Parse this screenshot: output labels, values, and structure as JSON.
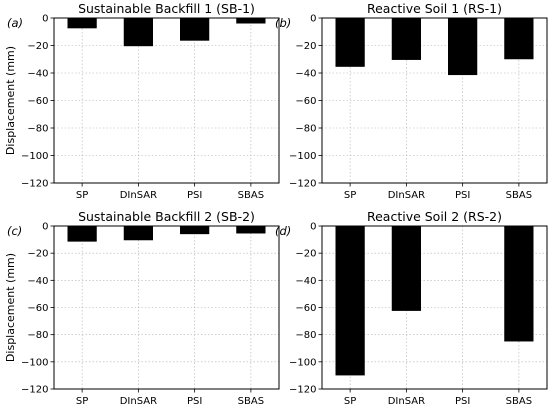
{
  "y_axis_label": "Displacement (mm)",
  "chart_data": [
    {
      "type": "bar",
      "panel_label": "(a)",
      "title": "Sustainable Backfill 1 (SB-1)",
      "categories": [
        "SP",
        "DInSAR",
        "PSI",
        "SBAS"
      ],
      "values": [
        -7.5,
        -20.5,
        -16.5,
        -4.0
      ],
      "ylim": [
        -120,
        0
      ],
      "yticks": [
        0,
        -20,
        -40,
        -60,
        -80,
        -100,
        -120
      ],
      "ylabel": "Displacement (mm)",
      "grid": true,
      "bar_color": "#000000"
    },
    {
      "type": "bar",
      "panel_label": "(b)",
      "title": "Reactive Soil 1 (RS-1)",
      "categories": [
        "SP",
        "DInSAR",
        "PSI",
        "SBAS"
      ],
      "values": [
        -35.5,
        -30.5,
        -41.5,
        -30.0
      ],
      "ylim": [
        -120,
        0
      ],
      "yticks": [
        0,
        -20,
        -40,
        -60,
        -80,
        -100,
        -120
      ],
      "ylabel": "",
      "grid": true,
      "bar_color": "#000000"
    },
    {
      "type": "bar",
      "panel_label": "(c)",
      "title": "Sustainable Backfill 2 (SB-2)",
      "categories": [
        "SP",
        "DInSAR",
        "PSI",
        "SBAS"
      ],
      "values": [
        -11.5,
        -10.5,
        -6.0,
        -5.5
      ],
      "ylim": [
        -120,
        0
      ],
      "yticks": [
        0,
        -20,
        -40,
        -60,
        -80,
        -100,
        -120
      ],
      "ylabel": "Displacement (mm)",
      "grid": true,
      "bar_color": "#000000"
    },
    {
      "type": "bar",
      "panel_label": "(d)",
      "title": "Reactive Soil 2 (RS-2)",
      "categories": [
        "SP",
        "DInSAR",
        "PSI",
        "SBAS"
      ],
      "values": [
        -110.0,
        -62.5,
        0,
        -85.0
      ],
      "ylim": [
        -120,
        0
      ],
      "yticks": [
        0,
        -20,
        -40,
        -60,
        -80,
        -100,
        -120
      ],
      "ylabel": "",
      "grid": true,
      "bar_color": "#000000"
    }
  ]
}
